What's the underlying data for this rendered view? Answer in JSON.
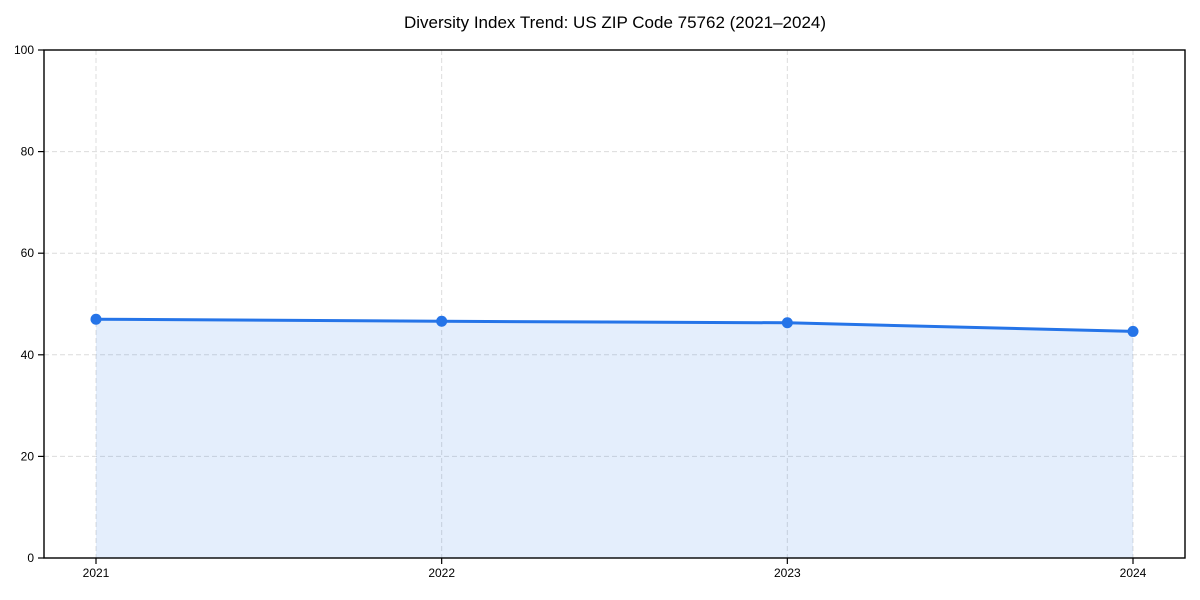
{
  "chart_data": {
    "type": "line",
    "title": "Diversity Index Trend: US ZIP Code 75762 (2021–2024)",
    "x": [
      "2021",
      "2022",
      "2023",
      "2024"
    ],
    "series": [
      {
        "name": "Diversity Index",
        "values": [
          47.0,
          46.6,
          46.3,
          44.6
        ]
      }
    ],
    "xlabel": "",
    "ylabel": "",
    "ylim": [
      0,
      100
    ],
    "yticks": [
      0,
      20,
      40,
      60,
      80,
      100
    ],
    "grid": "dashed, horizontal and vertical",
    "legend": "none",
    "area_fill": true,
    "marker": "circle",
    "colors": {
      "line": "#2574e8",
      "marker": "#2574e8",
      "fill": "rgba(37,116,232,0.12)",
      "grid": "#dcdcdc",
      "axis": "#000000",
      "background": "#ffffff"
    }
  }
}
